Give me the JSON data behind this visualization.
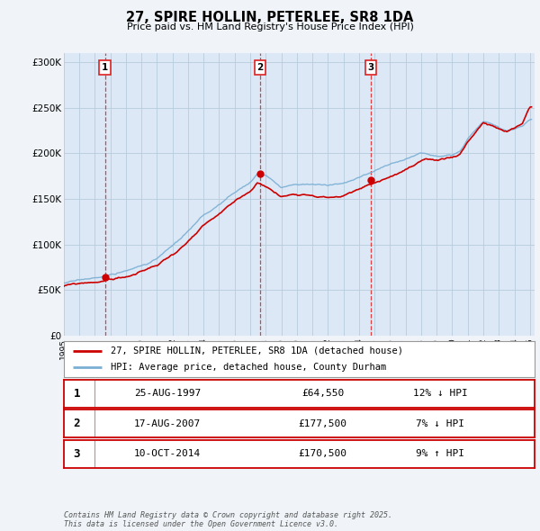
{
  "title": "27, SPIRE HOLLIN, PETERLEE, SR8 1DA",
  "subtitle": "Price paid vs. HM Land Registry's House Price Index (HPI)",
  "ylim": [
    0,
    310000
  ],
  "yticks": [
    0,
    50000,
    100000,
    150000,
    200000,
    250000,
    300000
  ],
  "ytick_labels": [
    "£0",
    "£50K",
    "£100K",
    "£150K",
    "£200K",
    "£250K",
    "£300K"
  ],
  "background_color": "#f0f4f8",
  "plot_bg_color": "#dce8f5",
  "grid_color": "#b8ccdd",
  "sale_color": "#cc0000",
  "hpi_color": "#7aafd4",
  "vline_color": "#dd2222",
  "transaction_dates": [
    1997.647,
    2007.628,
    2014.769
  ],
  "transaction_prices": [
    64550,
    177500,
    170500
  ],
  "transaction_labels": [
    "1",
    "2",
    "3"
  ],
  "legend_sale_label": "27, SPIRE HOLLIN, PETERLEE, SR8 1DA (detached house)",
  "legend_hpi_label": "HPI: Average price, detached house, County Durham",
  "table_rows": [
    [
      "1",
      "25-AUG-1997",
      "£64,550",
      "12% ↓ HPI"
    ],
    [
      "2",
      "17-AUG-2007",
      "£177,500",
      "7% ↓ HPI"
    ],
    [
      "3",
      "10-OCT-2014",
      "£170,500",
      "9% ↑ HPI"
    ]
  ],
  "footer": "Contains HM Land Registry data © Crown copyright and database right 2025.\nThis data is licensed under the Open Government Licence v3.0."
}
